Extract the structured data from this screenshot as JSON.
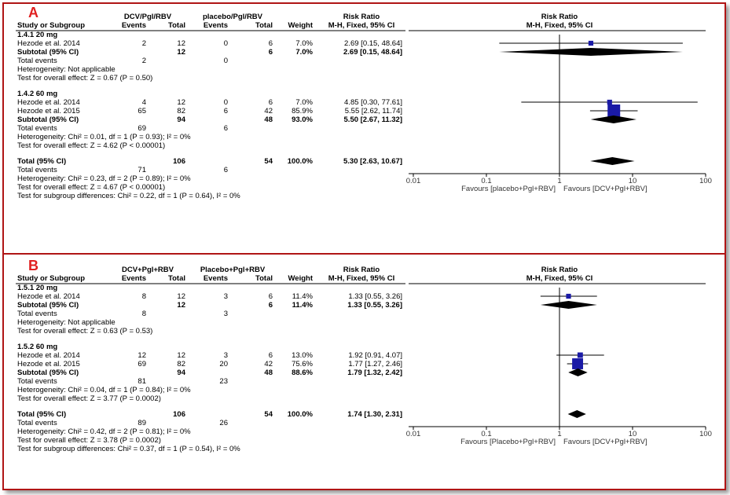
{
  "panels": [
    {
      "label": "A",
      "exp_group": "DCV/Pgl/RBV",
      "ctl_group": "placebo/Pgl/RBV",
      "rr_header": "Risk Ratio",
      "rr_method": "M-H, Fixed, 95% CI",
      "col_study": "Study or Subgroup",
      "col_events": "Events",
      "col_total": "Total",
      "col_weight": "Weight",
      "subgroups": [
        {
          "title": "1.4.1 20 mg",
          "studies": [
            {
              "name": "Hezode et al. 2014",
              "exp_events": "2",
              "exp_total": "12",
              "ctl_events": "0",
              "ctl_total": "6",
              "weight": "7.0%",
              "ci_text": "2.69 [0.15, 48.64]",
              "rr": 2.69,
              "lo": 0.15,
              "hi": 48.64,
              "box": 0.3
            }
          ],
          "subtotal": {
            "label": "Subtotal (95% CI)",
            "exp_total": "12",
            "ctl_total": "6",
            "weight": "7.0%",
            "ci_text": "2.69 [0.15, 48.64]",
            "rr": 2.69,
            "lo": 0.15,
            "hi": 48.64
          },
          "total_events_label": "Total events",
          "exp_events_total": "2",
          "ctl_events_total": "0",
          "heterogeneity": "Heterogeneity: Not applicable",
          "overall": "Test for overall effect: Z = 0.67 (P = 0.50)"
        },
        {
          "title": "1.4.2 60 mg",
          "studies": [
            {
              "name": "Hezode et al. 2014",
              "exp_events": "4",
              "exp_total": "12",
              "ctl_events": "0",
              "ctl_total": "6",
              "weight": "7.0%",
              "ci_text": "4.85 [0.30, 77.61]",
              "rr": 4.85,
              "lo": 0.3,
              "hi": 77.61,
              "box": 0.3
            },
            {
              "name": "Hezode et al. 2015",
              "exp_events": "65",
              "exp_total": "82",
              "ctl_events": "6",
              "ctl_total": "42",
              "weight": "85.9%",
              "ci_text": "5.55 [2.62, 11.74]",
              "rr": 5.55,
              "lo": 2.62,
              "hi": 11.74,
              "box": 1.0
            }
          ],
          "subtotal": {
            "label": "Subtotal (95% CI)",
            "exp_total": "94",
            "ctl_total": "48",
            "weight": "93.0%",
            "ci_text": "5.50 [2.67, 11.32]",
            "rr": 5.5,
            "lo": 2.67,
            "hi": 11.32
          },
          "total_events_label": "Total events",
          "exp_events_total": "69",
          "ctl_events_total": "6",
          "heterogeneity": "Heterogeneity: Chi² = 0.01, df = 1 (P = 0.93); I² = 0%",
          "overall": "Test for overall effect: Z = 4.62 (P < 0.00001)"
        }
      ],
      "total": {
        "label": "Total (95% CI)",
        "exp_total": "106",
        "ctl_total": "54",
        "weight": "100.0%",
        "ci_text": "5.30 [2.63, 10.67]",
        "rr": 5.3,
        "lo": 2.63,
        "hi": 10.67
      },
      "total_events_label": "Total events",
      "total_exp_events": "71",
      "total_ctl_events": "6",
      "heterogeneity": "Heterogeneity: Chi² = 0.23, df = 2 (P = 0.89); I² = 0%",
      "overall": "Test for overall effect: Z = 4.67 (P < 0.00001)",
      "subgroup_diff": "Test for subgroup differences: Chi² = 0.22, df = 1 (P = 0.64), I² = 0%",
      "axis_ticks": [
        "0.01",
        "0.1",
        "1",
        "10",
        "100"
      ],
      "favours_left": "Favours [placebo+Pgl+RBV]",
      "favours_right": "Favours [DCV+Pgl+RBV]"
    },
    {
      "label": "B",
      "exp_group": "DCV+Pgl+RBV",
      "ctl_group": "Placebo+Pgl+RBV",
      "rr_header": "Risk Ratio",
      "rr_method": "M-H, Fixed, 95% CI",
      "col_study": "Study or Subgroup",
      "col_events": "Events",
      "col_total": "Total",
      "col_weight": "Weight",
      "subgroups": [
        {
          "title": "1.5.1 20 mg",
          "studies": [
            {
              "name": "Hezode et al. 2014",
              "exp_events": "8",
              "exp_total": "12",
              "ctl_events": "3",
              "ctl_total": "6",
              "weight": "11.4%",
              "ci_text": "1.33 [0.55, 3.26]",
              "rr": 1.33,
              "lo": 0.55,
              "hi": 3.26,
              "box": 0.3
            }
          ],
          "subtotal": {
            "label": "Subtotal (95% CI)",
            "exp_total": "12",
            "ctl_total": "6",
            "weight": "11.4%",
            "ci_text": "1.33 [0.55, 3.26]",
            "rr": 1.33,
            "lo": 0.55,
            "hi": 3.26
          },
          "total_events_label": "Total events",
          "exp_events_total": "8",
          "ctl_events_total": "3",
          "heterogeneity": "Heterogeneity: Not applicable",
          "overall": "Test for overall effect: Z = 0.63 (P = 0.53)"
        },
        {
          "title": "1.5.2 60 mg",
          "studies": [
            {
              "name": "Hezode et al. 2014",
              "exp_events": "12",
              "exp_total": "12",
              "ctl_events": "3",
              "ctl_total": "6",
              "weight": "13.0%",
              "ci_text": "1.92 [0.91, 4.07]",
              "rr": 1.92,
              "lo": 0.91,
              "hi": 4.07,
              "box": 0.35
            },
            {
              "name": "Hezode et al. 2015",
              "exp_events": "69",
              "exp_total": "82",
              "ctl_events": "20",
              "ctl_total": "42",
              "weight": "75.6%",
              "ci_text": "1.77 [1.27, 2.46]",
              "rr": 1.77,
              "lo": 1.27,
              "hi": 2.46,
              "box": 0.85
            }
          ],
          "subtotal": {
            "label": "Subtotal (95% CI)",
            "exp_total": "94",
            "ctl_total": "48",
            "weight": "88.6%",
            "ci_text": "1.79 [1.32, 2.42]",
            "rr": 1.79,
            "lo": 1.32,
            "hi": 2.42
          },
          "total_events_label": "Total events",
          "exp_events_total": "81",
          "ctl_events_total": "23",
          "heterogeneity": "Heterogeneity: Chi² = 0.04, df = 1 (P = 0.84); I² = 0%",
          "overall": "Test for overall effect: Z = 3.77 (P = 0.0002)"
        }
      ],
      "total": {
        "label": "Total (95% CI)",
        "exp_total": "106",
        "ctl_total": "54",
        "weight": "100.0%",
        "ci_text": "1.74 [1.30, 2.31]",
        "rr": 1.74,
        "lo": 1.3,
        "hi": 2.31
      },
      "total_events_label": "Total events",
      "total_exp_events": "89",
      "total_ctl_events": "26",
      "heterogeneity": "Heterogeneity: Chi² = 0.42, df = 2 (P = 0.81); I² = 0%",
      "overall": "Test for overall effect: Z = 3.78 (P = 0.0002)",
      "subgroup_diff": "Test for subgroup differences: Chi² = 0.37, df = 1 (P = 0.54), I² = 0%",
      "axis_ticks": [
        "0.01",
        "0.1",
        "1",
        "10",
        "100"
      ],
      "favours_left": "Favours [Placebo+Pgl+RBV]",
      "favours_right": "Favours [DCV+Pgl+RBV]"
    }
  ],
  "chart_data": [
    {
      "type": "forest",
      "scale": "log",
      "xlim": [
        0.01,
        100
      ],
      "reference_line": 1,
      "series": [
        {
          "name": "Hezode et al. 2014 (20 mg)",
          "rr": 2.69,
          "lo": 0.15,
          "hi": 48.64,
          "weight": 7.0
        },
        {
          "name": "Subtotal (95% CI) 20 mg",
          "rr": 2.69,
          "lo": 0.15,
          "hi": 48.64,
          "weight": 7.0
        },
        {
          "name": "Hezode et al. 2014 (60 mg)",
          "rr": 4.85,
          "lo": 0.3,
          "hi": 77.61,
          "weight": 7.0
        },
        {
          "name": "Hezode et al. 2015 (60 mg)",
          "rr": 5.55,
          "lo": 2.62,
          "hi": 11.74,
          "weight": 85.9
        },
        {
          "name": "Subtotal (95% CI) 60 mg",
          "rr": 5.5,
          "lo": 2.67,
          "hi": 11.32,
          "weight": 93.0
        },
        {
          "name": "Total (95% CI)",
          "rr": 5.3,
          "lo": 2.63,
          "hi": 10.67,
          "weight": 100.0
        }
      ]
    },
    {
      "type": "forest",
      "scale": "log",
      "xlim": [
        0.01,
        100
      ],
      "reference_line": 1,
      "series": [
        {
          "name": "Hezode et al. 2014 (20 mg)",
          "rr": 1.33,
          "lo": 0.55,
          "hi": 3.26,
          "weight": 11.4
        },
        {
          "name": "Subtotal (95% CI) 20 mg",
          "rr": 1.33,
          "lo": 0.55,
          "hi": 3.26,
          "weight": 11.4
        },
        {
          "name": "Hezode et al. 2014 (60 mg)",
          "rr": 1.92,
          "lo": 0.91,
          "hi": 4.07,
          "weight": 13.0
        },
        {
          "name": "Hezode et al. 2015 (60 mg)",
          "rr": 1.77,
          "lo": 1.27,
          "hi": 2.46,
          "weight": 75.6
        },
        {
          "name": "Subtotal (95% CI) 60 mg",
          "rr": 1.79,
          "lo": 1.32,
          "hi": 2.42,
          "weight": 88.6
        },
        {
          "name": "Total (95% CI)",
          "rr": 1.74,
          "lo": 1.3,
          "hi": 2.31,
          "weight": 100.0
        }
      ]
    }
  ]
}
